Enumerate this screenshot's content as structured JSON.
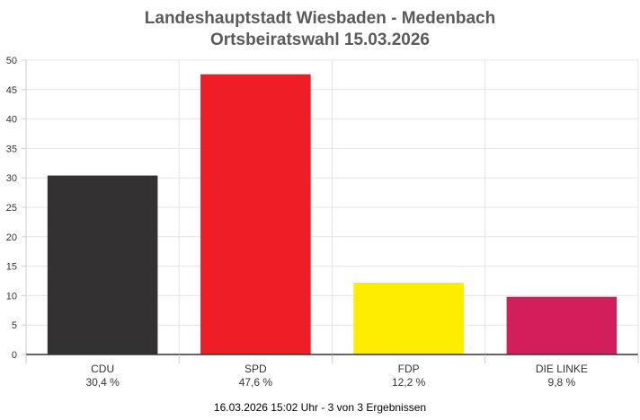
{
  "title_line1": "Landeshauptstadt Wiesbaden - Medenbach",
  "title_line2": "Ortsbeiratswahl 15.03.2026",
  "footer": "16.03.2026 15:02 Uhr - 3 von 3 Ergebnissen",
  "chart_data": {
    "type": "bar",
    "title": "Landeshauptstadt Wiesbaden - Medenbach",
    "subtitle": "Ortsbeiratswahl 15.03.2026",
    "categories": [
      "CDU",
      "SPD",
      "FDP",
      "DIE LINKE"
    ],
    "values": [
      30.4,
      47.6,
      12.2,
      9.8
    ],
    "value_labels": [
      "30,4 %",
      "47,6 %",
      "12,2 %",
      "9,8 %"
    ],
    "colors": [
      "#343132",
      "#ee1d26",
      "#ffed00",
      "#d21f5b"
    ],
    "ylim": [
      0,
      50
    ],
    "yticks": [
      0,
      5,
      10,
      15,
      20,
      25,
      30,
      35,
      40,
      45,
      50
    ],
    "grid": true,
    "xlabel": "",
    "ylabel": ""
  }
}
